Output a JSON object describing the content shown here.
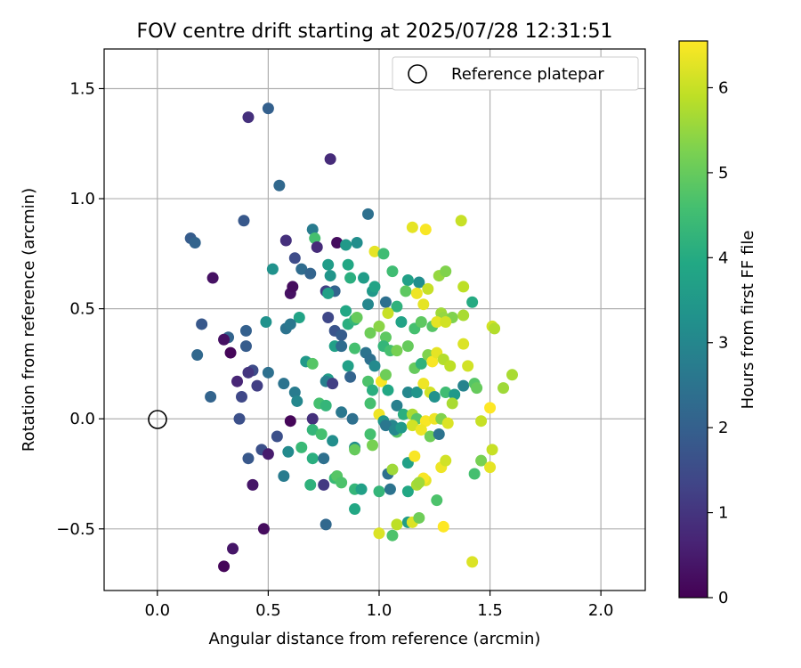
{
  "chart_data": {
    "type": "scatter",
    "title": "FOV centre drift starting at 2025/07/28 12:31:51",
    "xlabel": "Angular distance from reference (arcmin)",
    "ylabel": "Rotation from reference (arcmin)",
    "xlim": [
      -0.24,
      2.2
    ],
    "ylim": [
      -0.78,
      1.68
    ],
    "xticks": [
      0.0,
      0.5,
      1.0,
      1.5,
      2.0
    ],
    "xtick_labels": [
      "0.0",
      "0.5",
      "1.0",
      "1.5",
      "2.0"
    ],
    "yticks": [
      -0.5,
      0.0,
      0.5,
      1.0,
      1.5
    ],
    "ytick_labels": [
      "−0.5",
      "0.0",
      "0.5",
      "1.0",
      "1.5"
    ],
    "grid": true,
    "legend": {
      "placement": "top-right",
      "entries": [
        "Reference platepar"
      ]
    },
    "reference_point": {
      "x": 0.0,
      "y": 0.0,
      "marker": "open-circle"
    },
    "colorbar": {
      "label": "Hours from first FF file",
      "colormap": "viridis",
      "range": [
        0,
        6.55
      ],
      "ticks": [
        0,
        1,
        2,
        3,
        4,
        5,
        6
      ],
      "tick_labels": [
        "0",
        "1",
        "2",
        "3",
        "4",
        "5",
        "6"
      ]
    },
    "points_columns": [
      "x",
      "y",
      "hours"
    ],
    "points": [
      [
        0.41,
        1.37,
        0.9
      ],
      [
        0.5,
        1.41,
        2.0
      ],
      [
        0.78,
        1.18,
        0.8
      ],
      [
        0.55,
        1.06,
        2.2
      ],
      [
        0.39,
        0.9,
        1.8
      ],
      [
        0.95,
        0.93,
        2.4
      ],
      [
        1.37,
        0.9,
        6.0
      ],
      [
        0.15,
        0.82,
        1.9
      ],
      [
        0.17,
        0.8,
        2.1
      ],
      [
        0.58,
        0.81,
        0.9
      ],
      [
        0.7,
        0.86,
        2.7
      ],
      [
        0.71,
        0.82,
        4.6
      ],
      [
        0.72,
        0.78,
        0.8
      ],
      [
        0.81,
        0.8,
        0.2
      ],
      [
        0.85,
        0.79,
        3.5
      ],
      [
        0.9,
        0.8,
        3.2
      ],
      [
        0.98,
        0.76,
        6.3
      ],
      [
        1.02,
        0.75,
        4.5
      ],
      [
        1.15,
        0.87,
        6.3
      ],
      [
        1.21,
        0.86,
        6.5
      ],
      [
        0.25,
        0.64,
        0.3
      ],
      [
        0.52,
        0.68,
        3.3
      ],
      [
        0.62,
        0.73,
        1.5
      ],
      [
        0.65,
        0.68,
        2.3
      ],
      [
        0.69,
        0.66,
        2.1
      ],
      [
        0.77,
        0.7,
        3.6
      ],
      [
        0.76,
        0.58,
        1.2
      ],
      [
        0.8,
        0.58,
        2.1
      ],
      [
        0.78,
        0.65,
        3.4
      ],
      [
        0.86,
        0.7,
        3.9
      ],
      [
        0.87,
        0.64,
        4.1
      ],
      [
        0.93,
        0.64,
        3.6
      ],
      [
        0.97,
        0.58,
        3.5
      ],
      [
        0.98,
        0.6,
        3.8
      ],
      [
        1.06,
        0.67,
        4.5
      ],
      [
        1.13,
        0.63,
        3.7
      ],
      [
        1.18,
        0.62,
        3.2
      ],
      [
        1.27,
        0.65,
        5.5
      ],
      [
        1.3,
        0.67,
        5.3
      ],
      [
        1.38,
        0.6,
        5.9
      ],
      [
        1.42,
        0.53,
        4.0
      ],
      [
        0.6,
        0.57,
        0.3
      ],
      [
        0.61,
        0.6,
        0.2
      ],
      [
        0.64,
        0.46,
        3.8
      ],
      [
        0.77,
        0.57,
        3.7
      ],
      [
        0.85,
        0.49,
        3.9
      ],
      [
        0.95,
        0.52,
        3.0
      ],
      [
        1.03,
        0.53,
        2.4
      ],
      [
        1.08,
        0.51,
        4.2
      ],
      [
        1.12,
        0.58,
        4.9
      ],
      [
        1.17,
        0.57,
        6.4
      ],
      [
        1.2,
        0.52,
        6.3
      ],
      [
        1.22,
        0.59,
        6.0
      ],
      [
        1.28,
        0.48,
        5.6
      ],
      [
        1.29,
        0.46,
        5.5
      ],
      [
        1.33,
        0.46,
        5.3
      ],
      [
        0.2,
        0.43,
        1.8
      ],
      [
        0.32,
        0.37,
        2.1
      ],
      [
        0.3,
        0.36,
        0.3
      ],
      [
        0.4,
        0.4,
        2.0
      ],
      [
        0.49,
        0.44,
        3.3
      ],
      [
        0.58,
        0.41,
        2.5
      ],
      [
        0.6,
        0.43,
        2.6
      ],
      [
        0.77,
        0.46,
        1.4
      ],
      [
        0.8,
        0.4,
        1.7
      ],
      [
        0.83,
        0.38,
        1.9
      ],
      [
        0.86,
        0.43,
        4.1
      ],
      [
        0.89,
        0.45,
        4.3
      ],
      [
        0.9,
        0.46,
        5.0
      ],
      [
        0.96,
        0.39,
        5.1
      ],
      [
        1.0,
        0.42,
        5.4
      ],
      [
        1.03,
        0.37,
        4.9
      ],
      [
        1.04,
        0.48,
        6.0
      ],
      [
        1.1,
        0.44,
        3.8
      ],
      [
        1.16,
        0.41,
        4.6
      ],
      [
        1.19,
        0.44,
        4.9
      ],
      [
        1.24,
        0.42,
        4.8
      ],
      [
        1.26,
        0.44,
        6.3
      ],
      [
        1.3,
        0.44,
        6.1
      ],
      [
        1.38,
        0.47,
        5.7
      ],
      [
        1.51,
        0.42,
        6.1
      ],
      [
        1.52,
        0.41,
        5.8
      ],
      [
        0.18,
        0.29,
        2.2
      ],
      [
        0.4,
        0.33,
        1.9
      ],
      [
        0.33,
        0.3,
        0.1
      ],
      [
        0.43,
        0.22,
        1.5
      ],
      [
        0.41,
        0.21,
        1.0
      ],
      [
        0.5,
        0.21,
        2.4
      ],
      [
        0.67,
        0.26,
        3.5
      ],
      [
        0.7,
        0.25,
        4.8
      ],
      [
        0.77,
        0.18,
        3.6
      ],
      [
        0.8,
        0.33,
        3.7
      ],
      [
        0.83,
        0.33,
        2.3
      ],
      [
        0.86,
        0.24,
        3.7
      ],
      [
        0.89,
        0.32,
        4.6
      ],
      [
        0.94,
        0.3,
        2.5
      ],
      [
        0.96,
        0.27,
        2.4
      ],
      [
        0.98,
        0.24,
        3.1
      ],
      [
        1.02,
        0.33,
        4.3
      ],
      [
        1.05,
        0.31,
        4.6
      ],
      [
        1.08,
        0.31,
        5.2
      ],
      [
        1.13,
        0.33,
        5.0
      ],
      [
        1.16,
        0.23,
        5.0
      ],
      [
        1.19,
        0.25,
        4.2
      ],
      [
        1.22,
        0.29,
        5.3
      ],
      [
        1.24,
        0.26,
        6.5
      ],
      [
        1.26,
        0.3,
        6.3
      ],
      [
        1.29,
        0.27,
        5.8
      ],
      [
        1.32,
        0.24,
        5.9
      ],
      [
        1.38,
        0.34,
        6.2
      ],
      [
        1.4,
        0.24,
        6.1
      ],
      [
        0.24,
        0.1,
        2.1
      ],
      [
        0.36,
        0.17,
        0.7
      ],
      [
        0.38,
        0.1,
        1.4
      ],
      [
        0.45,
        0.15,
        1.2
      ],
      [
        0.57,
        0.16,
        2.5
      ],
      [
        0.62,
        0.12,
        2.7
      ],
      [
        0.63,
        0.08,
        3.0
      ],
      [
        0.73,
        0.07,
        4.6
      ],
      [
        0.76,
        0.17,
        2.8
      ],
      [
        0.79,
        0.16,
        1.2
      ],
      [
        0.87,
        0.19,
        2.1
      ],
      [
        0.95,
        0.17,
        4.7
      ],
      [
        0.97,
        0.13,
        4.1
      ],
      [
        1.01,
        0.17,
        6.5
      ],
      [
        1.03,
        0.2,
        5.1
      ],
      [
        1.04,
        0.13,
        3.9
      ],
      [
        1.08,
        0.06,
        2.8
      ],
      [
        1.13,
        0.12,
        3.0
      ],
      [
        1.17,
        0.12,
        3.4
      ],
      [
        1.2,
        0.16,
        6.4
      ],
      [
        1.23,
        0.12,
        6.1
      ],
      [
        1.25,
        0.1,
        3.3
      ],
      [
        1.3,
        0.12,
        4.5
      ],
      [
        1.34,
        0.11,
        3.5
      ],
      [
        1.38,
        0.15,
        2.9
      ],
      [
        1.43,
        0.16,
        4.8
      ],
      [
        1.44,
        0.14,
        5.0
      ],
      [
        1.56,
        0.14,
        5.6
      ],
      [
        1.6,
        0.2,
        5.7
      ],
      [
        0.37,
        0.0,
        1.6
      ],
      [
        0.6,
        -0.01,
        0.1
      ],
      [
        0.7,
        0.0,
        0.9
      ],
      [
        0.76,
        0.06,
        4.3
      ],
      [
        0.83,
        0.03,
        2.6
      ],
      [
        0.88,
        0.0,
        2.4
      ],
      [
        0.96,
        0.07,
        4.6
      ],
      [
        1.0,
        0.02,
        6.4
      ],
      [
        1.02,
        -0.01,
        3.4
      ],
      [
        1.06,
        -0.03,
        3.0
      ],
      [
        1.08,
        -0.06,
        4.8
      ],
      [
        1.11,
        0.02,
        4.1
      ],
      [
        1.15,
        0.02,
        5.7
      ],
      [
        1.17,
        0.0,
        4.8
      ],
      [
        1.21,
        -0.01,
        6.5
      ],
      [
        1.25,
        0.0,
        6.4
      ],
      [
        1.28,
        0.0,
        5.3
      ],
      [
        1.31,
        -0.02,
        6.2
      ],
      [
        1.33,
        0.07,
        5.7
      ],
      [
        1.46,
        -0.01,
        6.0
      ],
      [
        1.5,
        0.05,
        6.6
      ],
      [
        0.54,
        -0.08,
        1.6
      ],
      [
        0.7,
        -0.05,
        4.3
      ],
      [
        0.74,
        -0.07,
        4.6
      ],
      [
        0.79,
        -0.1,
        3.2
      ],
      [
        0.89,
        -0.13,
        3.2
      ],
      [
        0.96,
        -0.07,
        4.6
      ],
      [
        0.97,
        -0.12,
        5.2
      ],
      [
        1.03,
        -0.03,
        2.6
      ],
      [
        1.07,
        -0.05,
        3.0
      ],
      [
        1.1,
        -0.04,
        3.5
      ],
      [
        1.15,
        -0.03,
        6.1
      ],
      [
        1.19,
        -0.05,
        6.4
      ],
      [
        1.23,
        -0.08,
        5.1
      ],
      [
        1.27,
        -0.07,
        2.5
      ],
      [
        0.41,
        -0.18,
        1.8
      ],
      [
        0.47,
        -0.14,
        1.6
      ],
      [
        0.5,
        -0.16,
        0.5
      ],
      [
        0.59,
        -0.15,
        3.1
      ],
      [
        0.65,
        -0.13,
        4.4
      ],
      [
        0.7,
        -0.18,
        4.1
      ],
      [
        0.75,
        -0.18,
        2.4
      ],
      [
        0.8,
        -0.27,
        4.4
      ],
      [
        0.89,
        -0.14,
        5.0
      ],
      [
        1.04,
        -0.25,
        2.4
      ],
      [
        1.06,
        -0.23,
        5.6
      ],
      [
        1.13,
        -0.2,
        3.7
      ],
      [
        1.16,
        -0.17,
        6.5
      ],
      [
        1.21,
        -0.28,
        6.3
      ],
      [
        1.28,
        -0.22,
        6.4
      ],
      [
        1.3,
        -0.19,
        6.1
      ],
      [
        1.46,
        -0.19,
        5.2
      ],
      [
        1.5,
        -0.22,
        6.3
      ],
      [
        1.51,
        -0.14,
        6.0
      ],
      [
        0.43,
        -0.3,
        0.4
      ],
      [
        0.57,
        -0.26,
        2.7
      ],
      [
        0.69,
        -0.3,
        4.2
      ],
      [
        0.75,
        -0.3,
        1.1
      ],
      [
        0.81,
        -0.26,
        4.8
      ],
      [
        0.83,
        -0.29,
        4.7
      ],
      [
        0.89,
        -0.32,
        4.3
      ],
      [
        0.92,
        -0.32,
        3.7
      ],
      [
        1.0,
        -0.33,
        4.3
      ],
      [
        1.05,
        -0.32,
        2.5
      ],
      [
        1.13,
        -0.33,
        3.9
      ],
      [
        1.17,
        -0.3,
        5.7
      ],
      [
        1.2,
        -0.27,
        6.5
      ],
      [
        1.18,
        -0.29,
        5.6
      ],
      [
        1.26,
        -0.37,
        4.7
      ],
      [
        1.43,
        -0.25,
        4.6
      ],
      [
        0.76,
        -0.48,
        2.2
      ],
      [
        0.89,
        -0.41,
        3.9
      ],
      [
        1.0,
        -0.52,
        6.2
      ],
      [
        1.06,
        -0.53,
        4.7
      ],
      [
        1.08,
        -0.48,
        5.9
      ],
      [
        1.13,
        -0.47,
        3.6
      ],
      [
        1.15,
        -0.47,
        6.2
      ],
      [
        1.18,
        -0.45,
        5.1
      ],
      [
        1.29,
        -0.49,
        6.6
      ],
      [
        0.34,
        -0.59,
        0.4
      ],
      [
        0.3,
        -0.67,
        0.1
      ],
      [
        0.48,
        -0.5,
        0.2
      ],
      [
        1.42,
        -0.65,
        6.2
      ]
    ]
  }
}
